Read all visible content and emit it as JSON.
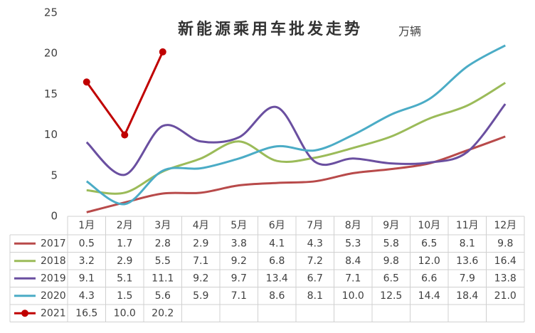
{
  "chart_data": {
    "type": "line",
    "title": "新能源乘用车批发走势",
    "subtitle": "万辆",
    "categories": [
      "1月",
      "2月",
      "3月",
      "4月",
      "5月",
      "6月",
      "7月",
      "8月",
      "9月",
      "10月",
      "11月",
      "12月"
    ],
    "ylim": [
      0,
      25
    ],
    "yticks": [
      0,
      5,
      10,
      15,
      20,
      25
    ],
    "series": [
      {
        "name": "2017",
        "color": "#b84a4a",
        "smooth": true,
        "values": [
          0.5,
          1.7,
          2.8,
          2.9,
          3.8,
          4.1,
          4.3,
          5.3,
          5.8,
          6.5,
          8.1,
          9.8
        ],
        "value_labels": [
          "0.5",
          "1.7",
          "2.8",
          "2.9",
          "3.8",
          "4.1",
          "4.3",
          "5.3",
          "5.8",
          "6.5",
          "8.1",
          "9.8"
        ]
      },
      {
        "name": "2018",
        "color": "#9bbb59",
        "smooth": true,
        "values": [
          3.2,
          2.9,
          5.5,
          7.1,
          9.2,
          6.8,
          7.2,
          8.4,
          9.8,
          12.0,
          13.6,
          16.4
        ],
        "value_labels": [
          "3.2",
          "2.9",
          "5.5",
          "7.1",
          "9.2",
          "6.8",
          "7.2",
          "8.4",
          "9.8",
          "12.0",
          "13.6",
          "16.4"
        ]
      },
      {
        "name": "2019",
        "color": "#6a4fa0",
        "smooth": true,
        "values": [
          9.1,
          5.1,
          11.1,
          9.2,
          9.7,
          13.4,
          6.7,
          7.1,
          6.5,
          6.6,
          7.9,
          13.8
        ],
        "value_labels": [
          "9.1",
          "5.1",
          "11.1",
          "9.2",
          "9.7",
          "13.4",
          "6.7",
          "7.1",
          "6.5",
          "6.6",
          "7.9",
          "13.8"
        ]
      },
      {
        "name": "2020",
        "color": "#4bacc6",
        "smooth": true,
        "values": [
          4.3,
          1.5,
          5.6,
          5.9,
          7.1,
          8.6,
          8.1,
          10.0,
          12.5,
          14.4,
          18.4,
          21.0
        ],
        "value_labels": [
          "4.3",
          "1.5",
          "5.6",
          "5.9",
          "7.1",
          "8.6",
          "8.1",
          "10.0",
          "12.5",
          "14.4",
          "18.4",
          "21.0"
        ]
      },
      {
        "name": "2021",
        "color": "#c00000",
        "smooth": false,
        "markers": true,
        "values": [
          16.5,
          10.0,
          20.2,
          null,
          null,
          null,
          null,
          null,
          null,
          null,
          null,
          null
        ],
        "value_labels": [
          "16.5",
          "10.0",
          "20.2",
          null,
          null,
          null,
          null,
          null,
          null,
          null,
          null,
          null
        ]
      }
    ]
  }
}
